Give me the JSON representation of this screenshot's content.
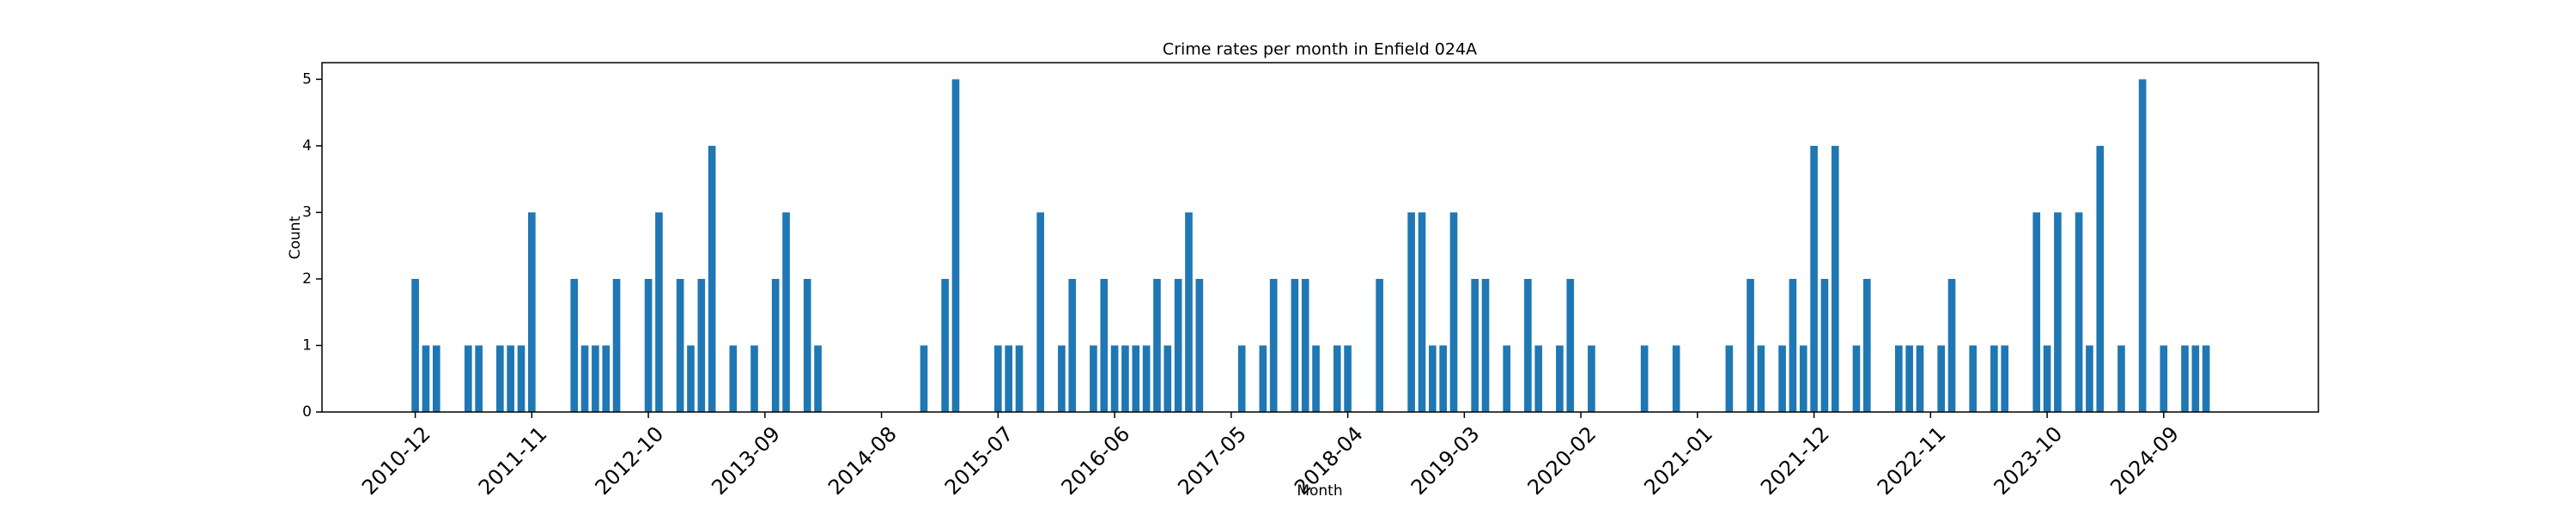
{
  "chart_data": {
    "type": "bar",
    "title": "Crime rates per month in Enfield 024A",
    "x_label": "Month",
    "y_label": "Count",
    "color": "#1f77b4",
    "categories": [
      "2010-12",
      "2011-01",
      "2011-02",
      "2011-03",
      "2011-04",
      "2011-05",
      "2011-06",
      "2011-07",
      "2011-08",
      "2011-09",
      "2011-10",
      "2011-11",
      "2011-12",
      "2012-01",
      "2012-02",
      "2012-03",
      "2012-04",
      "2012-05",
      "2012-06",
      "2012-07",
      "2012-08",
      "2012-09",
      "2012-10",
      "2012-11",
      "2012-12",
      "2013-01",
      "2013-02",
      "2013-03",
      "2013-04",
      "2013-05",
      "2013-06",
      "2013-07",
      "2013-08",
      "2013-09",
      "2013-10",
      "2013-11",
      "2013-12",
      "2014-01",
      "2014-02",
      "2014-03",
      "2014-04",
      "2014-05",
      "2014-06",
      "2014-07",
      "2014-08",
      "2014-09",
      "2014-10",
      "2014-11",
      "2014-12",
      "2015-01",
      "2015-02",
      "2015-03",
      "2015-04",
      "2015-05",
      "2015-06",
      "2015-07",
      "2015-08",
      "2015-09",
      "2015-10",
      "2015-11",
      "2015-12",
      "2016-01",
      "2016-02",
      "2016-03",
      "2016-04",
      "2016-05",
      "2016-06",
      "2016-07",
      "2016-08",
      "2016-09",
      "2016-10",
      "2016-11",
      "2016-12",
      "2017-01",
      "2017-02",
      "2017-03",
      "2017-04",
      "2017-05",
      "2017-06",
      "2017-07",
      "2017-08",
      "2017-09",
      "2017-10",
      "2017-11",
      "2017-12",
      "2018-01",
      "2018-02",
      "2018-03",
      "2018-04",
      "2018-05",
      "2018-06",
      "2018-07",
      "2018-08",
      "2018-09",
      "2018-10",
      "2018-11",
      "2018-12",
      "2019-01",
      "2019-02",
      "2019-03",
      "2019-04",
      "2019-05",
      "2019-06",
      "2019-07",
      "2019-08",
      "2019-09",
      "2019-10",
      "2019-11",
      "2019-12",
      "2020-01",
      "2020-02",
      "2020-03",
      "2020-04",
      "2020-05",
      "2020-06",
      "2020-07",
      "2020-08",
      "2020-09",
      "2020-10",
      "2020-11",
      "2020-12",
      "2021-01",
      "2021-02",
      "2021-03",
      "2021-04",
      "2021-05",
      "2021-06",
      "2021-07",
      "2021-08",
      "2021-09",
      "2021-10",
      "2021-11",
      "2021-12",
      "2022-01",
      "2022-02",
      "2022-03",
      "2022-04",
      "2022-05",
      "2022-06",
      "2022-07",
      "2022-08",
      "2022-09",
      "2022-10",
      "2022-11",
      "2022-12",
      "2023-01",
      "2023-02",
      "2023-03",
      "2023-04",
      "2023-05",
      "2023-06",
      "2023-07",
      "2023-08",
      "2023-09",
      "2023-10",
      "2023-11",
      "2023-12",
      "2024-01",
      "2024-02",
      "2024-03",
      "2024-04",
      "2024-05",
      "2024-06",
      "2024-07",
      "2024-08",
      "2024-09",
      "2024-10",
      "2024-11",
      "2024-12",
      "2025-01"
    ],
    "values": [
      2,
      1,
      1,
      0,
      0,
      1,
      1,
      0,
      1,
      1,
      1,
      3,
      0,
      0,
      0,
      2,
      1,
      1,
      1,
      2,
      0,
      0,
      2,
      3,
      0,
      2,
      1,
      2,
      4,
      0,
      1,
      0,
      1,
      0,
      2,
      3,
      0,
      2,
      1,
      0,
      0,
      0,
      0,
      0,
      0,
      0,
      0,
      0,
      1,
      0,
      2,
      5,
      0,
      0,
      0,
      1,
      1,
      1,
      0,
      3,
      0,
      1,
      2,
      0,
      1,
      2,
      1,
      1,
      1,
      1,
      2,
      1,
      2,
      3,
      2,
      0,
      0,
      0,
      1,
      0,
      1,
      2,
      0,
      2,
      2,
      1,
      0,
      1,
      1,
      0,
      0,
      2,
      0,
      0,
      3,
      3,
      1,
      1,
      3,
      0,
      2,
      2,
      0,
      1,
      0,
      2,
      1,
      0,
      1,
      2,
      0,
      1,
      0,
      0,
      0,
      0,
      1,
      0,
      0,
      1,
      0,
      0,
      0,
      0,
      1,
      0,
      2,
      1,
      0,
      1,
      2,
      1,
      4,
      2,
      4,
      0,
      1,
      2,
      0,
      0,
      1,
      1,
      1,
      0,
      1,
      2,
      0,
      1,
      0,
      1,
      1,
      0,
      0,
      3,
      1,
      3,
      0,
      3,
      1,
      4,
      0,
      1,
      0,
      5,
      0,
      1,
      0,
      1,
      1,
      1
    ],
    "xticks": [
      "2010-12",
      "2011-11",
      "2012-10",
      "2013-09",
      "2014-08",
      "2015-07",
      "2016-06",
      "2017-05",
      "2018-04",
      "2019-03",
      "2020-02",
      "2021-01",
      "2021-12",
      "2022-11",
      "2023-10",
      "2024-09"
    ],
    "ylim": [
      0,
      5.25
    ],
    "yticks": [
      0,
      1,
      2,
      3,
      4,
      5
    ]
  }
}
